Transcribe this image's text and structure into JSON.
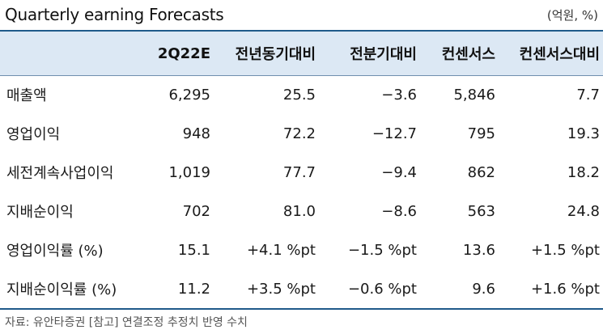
{
  "header": {
    "title": "Quarterly earning Forecasts",
    "unit": "(억원, %)"
  },
  "table": {
    "columns": [
      "",
      "2Q22E",
      "전년동기대비",
      "전분기대비",
      "컨센서스",
      "컨센서스대비"
    ],
    "rows": [
      [
        "매출액",
        "6,295",
        "25.5",
        "−3.6",
        "5,846",
        "7.7"
      ],
      [
        "영업이익",
        "948",
        "72.2",
        "−12.7",
        "795",
        "19.3"
      ],
      [
        "세전계속사업이익",
        "1,019",
        "77.7",
        "−9.4",
        "862",
        "18.2"
      ],
      [
        "지배순이익",
        "702",
        "81.0",
        "−8.6",
        "563",
        "24.8"
      ],
      [
        "영업이익률 (%)",
        "15.1",
        "+4.1 %pt",
        "−1.5 %pt",
        "13.6",
        "+1.5 %pt"
      ],
      [
        "지배순이익률 (%)",
        "11.2",
        "+3.5 %pt",
        "−0.6 %pt",
        "9.6",
        "+1.6 %pt"
      ]
    ]
  },
  "footer": {
    "source": "자료: 유안타증권 [참고] 연결조정 추정치 반영 수치"
  }
}
